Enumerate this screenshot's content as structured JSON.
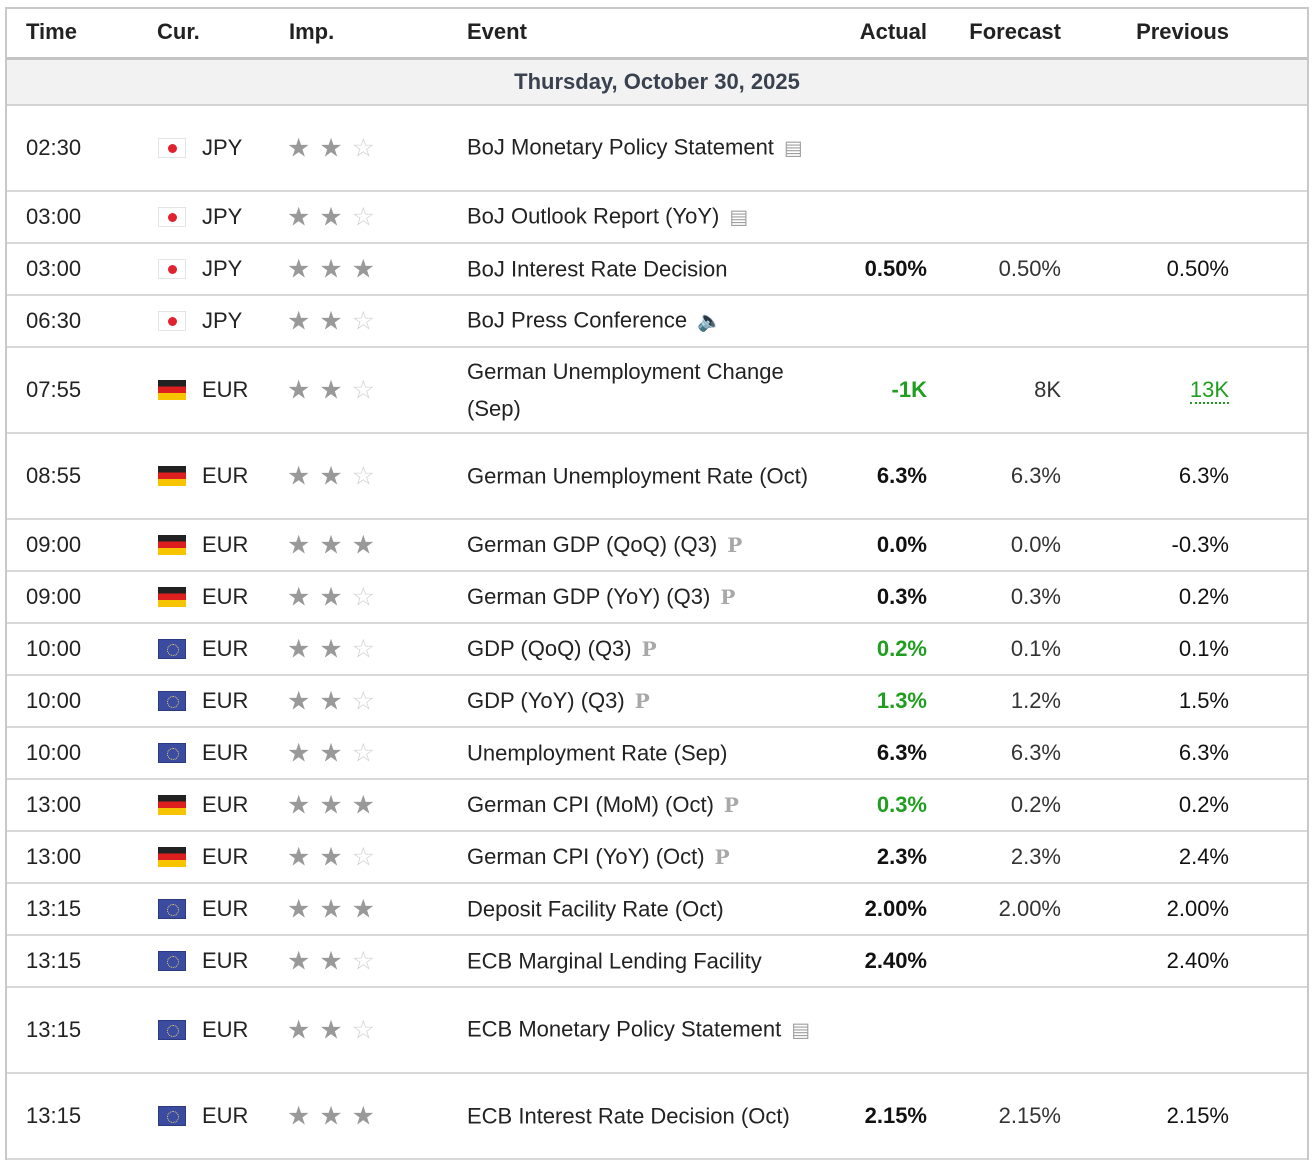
{
  "columns": {
    "time": "Time",
    "cur": "Cur.",
    "imp": "Imp.",
    "event": "Event",
    "actual": "Actual",
    "forecast": "Forecast",
    "previous": "Previous"
  },
  "date": "Thursday, October 30, 2025",
  "colors": {
    "positive": "#1f9e1f",
    "star_on": "#999999",
    "star_off": "#d0d0d0"
  },
  "rows": [
    {
      "time": "02:30",
      "flag": "jp",
      "cur": "JPY",
      "imp": 2,
      "event": "BoJ Monetary Policy Statement",
      "icon": "document-icon",
      "double": true,
      "actual": "",
      "forecast": "",
      "previous": ""
    },
    {
      "time": "03:00",
      "flag": "jp",
      "cur": "JPY",
      "imp": 2,
      "event": "BoJ Outlook Report (YoY)",
      "icon": "document-icon",
      "actual": "",
      "forecast": "",
      "previous": ""
    },
    {
      "time": "03:00",
      "flag": "jp",
      "cur": "JPY",
      "imp": 3,
      "event": "BoJ Interest Rate Decision",
      "icon": "",
      "actual": "0.50%",
      "forecast": "0.50%",
      "previous": "0.50%"
    },
    {
      "time": "06:30",
      "flag": "jp",
      "cur": "JPY",
      "imp": 2,
      "event": "BoJ Press Conference",
      "icon": "speaker-icon",
      "actual": "",
      "forecast": "",
      "previous": ""
    },
    {
      "time": "07:55",
      "flag": "de",
      "cur": "EUR",
      "imp": 2,
      "event": "German Unemployment Change (Sep)",
      "icon": "",
      "double": true,
      "actual": "-1K",
      "actual_color": "green",
      "forecast": "8K",
      "previous": "13K",
      "previous_color": "green",
      "previous_revised": true
    },
    {
      "time": "08:55",
      "flag": "de",
      "cur": "EUR",
      "imp": 2,
      "event": "German Unemployment Rate (Oct)",
      "icon": "",
      "double": true,
      "actual": "6.3%",
      "forecast": "6.3%",
      "previous": "6.3%"
    },
    {
      "time": "09:00",
      "flag": "de",
      "cur": "EUR",
      "imp": 3,
      "event": "German GDP (QoQ) (Q3)",
      "icon": "preliminary-icon",
      "actual": "0.0%",
      "forecast": "0.0%",
      "previous": "-0.3%"
    },
    {
      "time": "09:00",
      "flag": "de",
      "cur": "EUR",
      "imp": 2,
      "event": "German GDP (YoY) (Q3)",
      "icon": "preliminary-icon",
      "actual": "0.3%",
      "forecast": "0.3%",
      "previous": "0.2%"
    },
    {
      "time": "10:00",
      "flag": "eu",
      "cur": "EUR",
      "imp": 2,
      "event": "GDP (QoQ) (Q3)",
      "icon": "preliminary-icon",
      "actual": "0.2%",
      "actual_color": "green",
      "forecast": "0.1%",
      "previous": "0.1%"
    },
    {
      "time": "10:00",
      "flag": "eu",
      "cur": "EUR",
      "imp": 2,
      "event": "GDP (YoY) (Q3)",
      "icon": "preliminary-icon",
      "actual": "1.3%",
      "actual_color": "green",
      "forecast": "1.2%",
      "previous": "1.5%"
    },
    {
      "time": "10:00",
      "flag": "eu",
      "cur": "EUR",
      "imp": 2,
      "event": "Unemployment Rate (Sep)",
      "icon": "",
      "actual": "6.3%",
      "forecast": "6.3%",
      "previous": "6.3%"
    },
    {
      "time": "13:00",
      "flag": "de",
      "cur": "EUR",
      "imp": 3,
      "event": "German CPI (MoM) (Oct)",
      "icon": "preliminary-icon",
      "actual": "0.3%",
      "actual_color": "green",
      "forecast": "0.2%",
      "previous": "0.2%"
    },
    {
      "time": "13:00",
      "flag": "de",
      "cur": "EUR",
      "imp": 2,
      "event": "German CPI (YoY) (Oct)",
      "icon": "preliminary-icon",
      "actual": "2.3%",
      "forecast": "2.3%",
      "previous": "2.4%"
    },
    {
      "time": "13:15",
      "flag": "eu",
      "cur": "EUR",
      "imp": 3,
      "event": "Deposit Facility Rate (Oct)",
      "icon": "",
      "actual": "2.00%",
      "forecast": "2.00%",
      "previous": "2.00%"
    },
    {
      "time": "13:15",
      "flag": "eu",
      "cur": "EUR",
      "imp": 2,
      "event": "ECB Marginal Lending Facility",
      "icon": "",
      "actual": "2.40%",
      "forecast": "",
      "previous": "2.40%"
    },
    {
      "time": "13:15",
      "flag": "eu",
      "cur": "EUR",
      "imp": 2,
      "event": "ECB Monetary Policy Statement",
      "icon": "document-icon",
      "double": true,
      "actual": "",
      "forecast": "",
      "previous": ""
    },
    {
      "time": "13:15",
      "flag": "eu",
      "cur": "EUR",
      "imp": 3,
      "event": "ECB Interest Rate Decision (Oct)",
      "icon": "",
      "double": true,
      "actual": "2.15%",
      "forecast": "2.15%",
      "previous": "2.15%"
    }
  ]
}
